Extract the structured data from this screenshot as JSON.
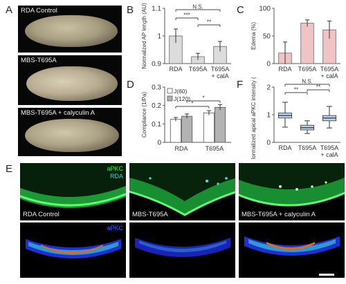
{
  "figure": {
    "letters": {
      "a": "A",
      "b": "B",
      "c": "C",
      "d": "D",
      "e": "E",
      "f": "F"
    },
    "panel_a": {
      "photos": [
        "RDA Control",
        "MBS-T695A",
        "MBS-T695A + calyculin A"
      ]
    },
    "panel_e": {
      "top_captions": [
        "RDA Control",
        "MBS-T695A",
        "MBS-T695A + calyculin A"
      ],
      "top_tags": [
        "aPKC",
        "RDA"
      ],
      "bottom_tag": "aPKC",
      "colors": {
        "apkc": "#39e04c",
        "rda": "#2fd0d8",
        "apkc_heatmap": "#3a5cff"
      }
    }
  },
  "chart_data": [
    {
      "panel": "B",
      "type": "bar",
      "categories": [
        "RDA",
        "T695A",
        "T695A + calA"
      ],
      "values": [
        1.0,
        0.925,
        0.962
      ],
      "errors": [
        0.025,
        0.012,
        0.018
      ],
      "ylabel": "Normalized AP length (AU)",
      "ylim": [
        0.9,
        1.1
      ],
      "yticks": [
        "0.9",
        "1",
        "1.1"
      ],
      "color": "#dcdcdc",
      "significance": [
        {
          "from": 0,
          "to": 2,
          "label": "N.S."
        },
        {
          "from": 0,
          "to": 1,
          "label": "***"
        },
        {
          "from": 1,
          "to": 2,
          "label": "**"
        }
      ]
    },
    {
      "panel": "C",
      "type": "bar",
      "categories": [
        "RDA",
        "T695A",
        "T695A + calA"
      ],
      "values": [
        19,
        73,
        61
      ],
      "errors": [
        20,
        6,
        16
      ],
      "ylabel": "Edema (%)",
      "ylim": [
        0,
        100
      ],
      "yticks": [
        "0",
        "50",
        "100"
      ],
      "color": "#f0c4c4"
    },
    {
      "panel": "D",
      "type": "bar",
      "categories": [
        "RDA",
        "T695A"
      ],
      "series": [
        {
          "name": "J(60)",
          "values": [
            0.125,
            0.16
          ],
          "errors": [
            0.01,
            0.012
          ],
          "color": "#ffffff"
        },
        {
          "name": "J(120)",
          "values": [
            0.142,
            0.19
          ],
          "errors": [
            0.012,
            0.015
          ],
          "color": "#b3b3b3"
        }
      ],
      "ylabel": "Compliance (1/Pa)",
      "ylim": [
        0,
        0.3
      ],
      "yticks": [
        "0",
        "0.1",
        "0.2",
        "0.3"
      ],
      "legend": "top-left",
      "significance": [
        {
          "label": "*"
        },
        {
          "label": "*"
        }
      ]
    },
    {
      "panel": "F",
      "type": "box",
      "categories": [
        "RDA",
        "T695A",
        "T695A + calA"
      ],
      "boxes": [
        {
          "min": 0.55,
          "q1": 0.88,
          "median": 0.97,
          "q3": 1.06,
          "max": 1.45
        },
        {
          "min": 0.32,
          "q1": 0.45,
          "median": 0.53,
          "q3": 0.62,
          "max": 0.78
        },
        {
          "min": 0.52,
          "q1": 0.78,
          "median": 0.88,
          "q3": 0.97,
          "max": 1.3
        }
      ],
      "ylabel": "Normalized apical aPKC intensity (AU)",
      "ylim": [
        0,
        2
      ],
      "yticks": [
        "0",
        "1",
        "2"
      ],
      "color": "#b9d3ec",
      "significance": [
        {
          "from": 0,
          "to": 2,
          "label": "N.S."
        },
        {
          "from": 0,
          "to": 1,
          "label": "**"
        },
        {
          "from": 1,
          "to": 2,
          "label": "**"
        }
      ]
    }
  ]
}
